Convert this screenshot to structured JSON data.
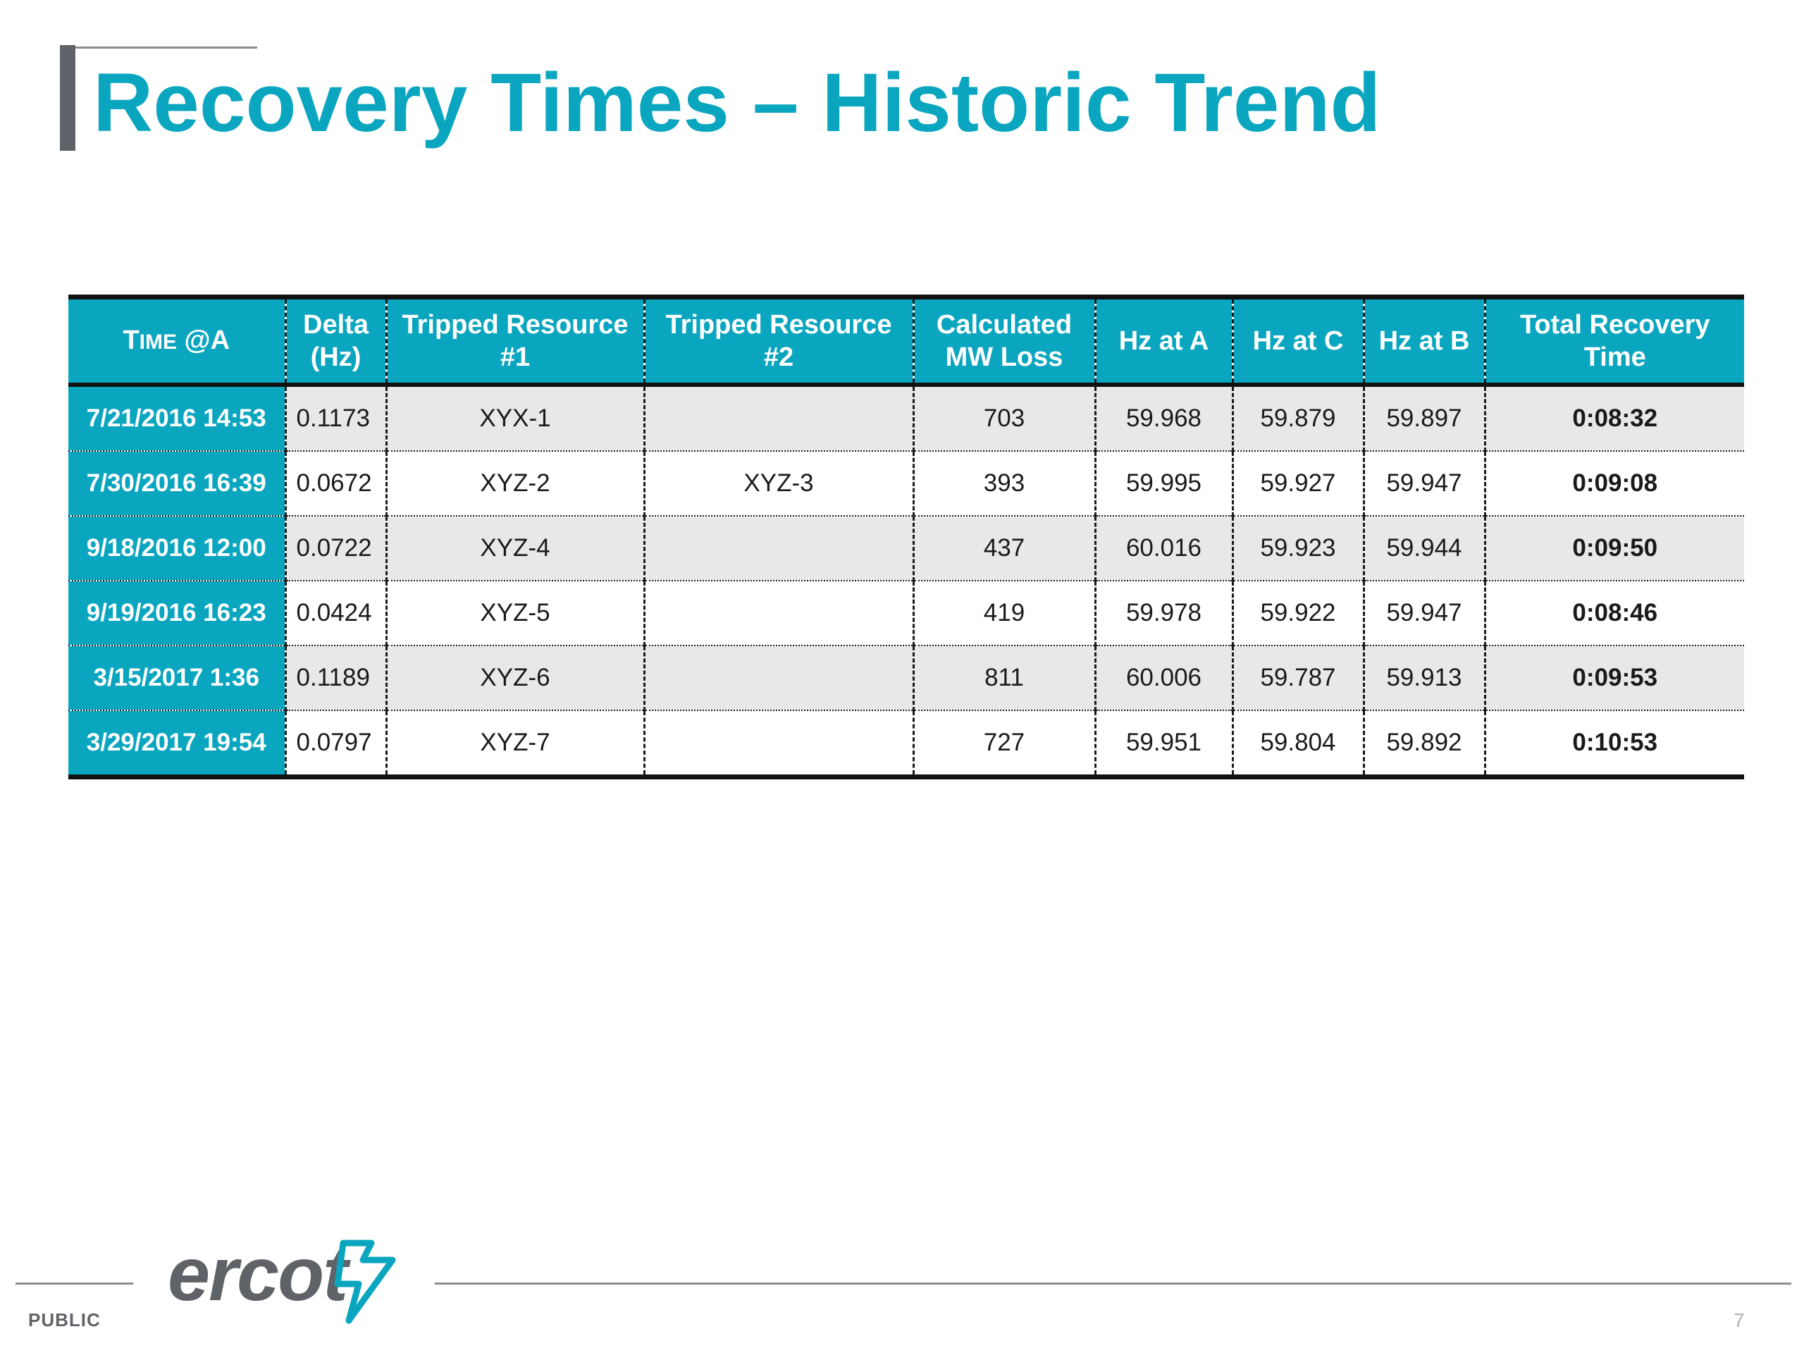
{
  "slide": {
    "title": "Recovery Times – Historic Trend"
  },
  "table": {
    "headers": [
      {
        "part1": "T",
        "part1_small": "IME",
        "part2": " @A",
        "line2": ""
      },
      {
        "line1": "Delta",
        "line2": "(Hz)"
      },
      {
        "line1": "Tripped Resource",
        "line2": "#1"
      },
      {
        "line1": "Tripped Resource",
        "line2": "#2"
      },
      {
        "line1": "Calculated",
        "line2": "MW Loss"
      },
      {
        "line1": "Hz at A",
        "line2": ""
      },
      {
        "line1": "Hz at C",
        "line2": ""
      },
      {
        "line1": "Hz at B",
        "line2": ""
      },
      {
        "line1": "Total Recovery",
        "line2": "Time"
      }
    ],
    "rows": [
      {
        "time": "7/21/2016 14:53",
        "delta": "0.1173",
        "res1": "XYX-1",
        "res2": "",
        "mw": "703",
        "hz_a": "59.968",
        "hz_c": "59.879",
        "hz_b": "59.897",
        "total": "0:08:32"
      },
      {
        "time": "7/30/2016 16:39",
        "delta": "0.0672",
        "res1": "XYZ-2",
        "res2": "XYZ-3",
        "mw": "393",
        "hz_a": "59.995",
        "hz_c": "59.927",
        "hz_b": "59.947",
        "total": "0:09:08"
      },
      {
        "time": "9/18/2016 12:00",
        "delta": "0.0722",
        "res1": "XYZ-4",
        "res2": "",
        "mw": "437",
        "hz_a": "60.016",
        "hz_c": "59.923",
        "hz_b": "59.944",
        "total": "0:09:50"
      },
      {
        "time": "9/19/2016 16:23",
        "delta": "0.0424",
        "res1": "XYZ-5",
        "res2": "",
        "mw": "419",
        "hz_a": "59.978",
        "hz_c": "59.922",
        "hz_b": "59.947",
        "total": "0:08:46"
      },
      {
        "time": "3/15/2017 1:36",
        "delta": "0.1189",
        "res1": "XYZ-6",
        "res2": "",
        "mw": "811",
        "hz_a": "60.006",
        "hz_c": "59.787",
        "hz_b": "59.913",
        "total": "0:09:53"
      },
      {
        "time": "3/29/2017 19:54",
        "delta": "0.0797",
        "res1": "XYZ-7",
        "res2": "",
        "mw": "727",
        "hz_a": "59.951",
        "hz_c": "59.804",
        "hz_b": "59.892",
        "total": "0:10:53"
      }
    ]
  },
  "footer": {
    "logo_text": "ercot",
    "classification": "PUBLIC",
    "page_number": "7"
  },
  "colors": {
    "accent": "#0aa6bf",
    "text_dark": "#1a1a1a",
    "gray": "#5f6368",
    "row_shade": "#e8e8e8"
  }
}
